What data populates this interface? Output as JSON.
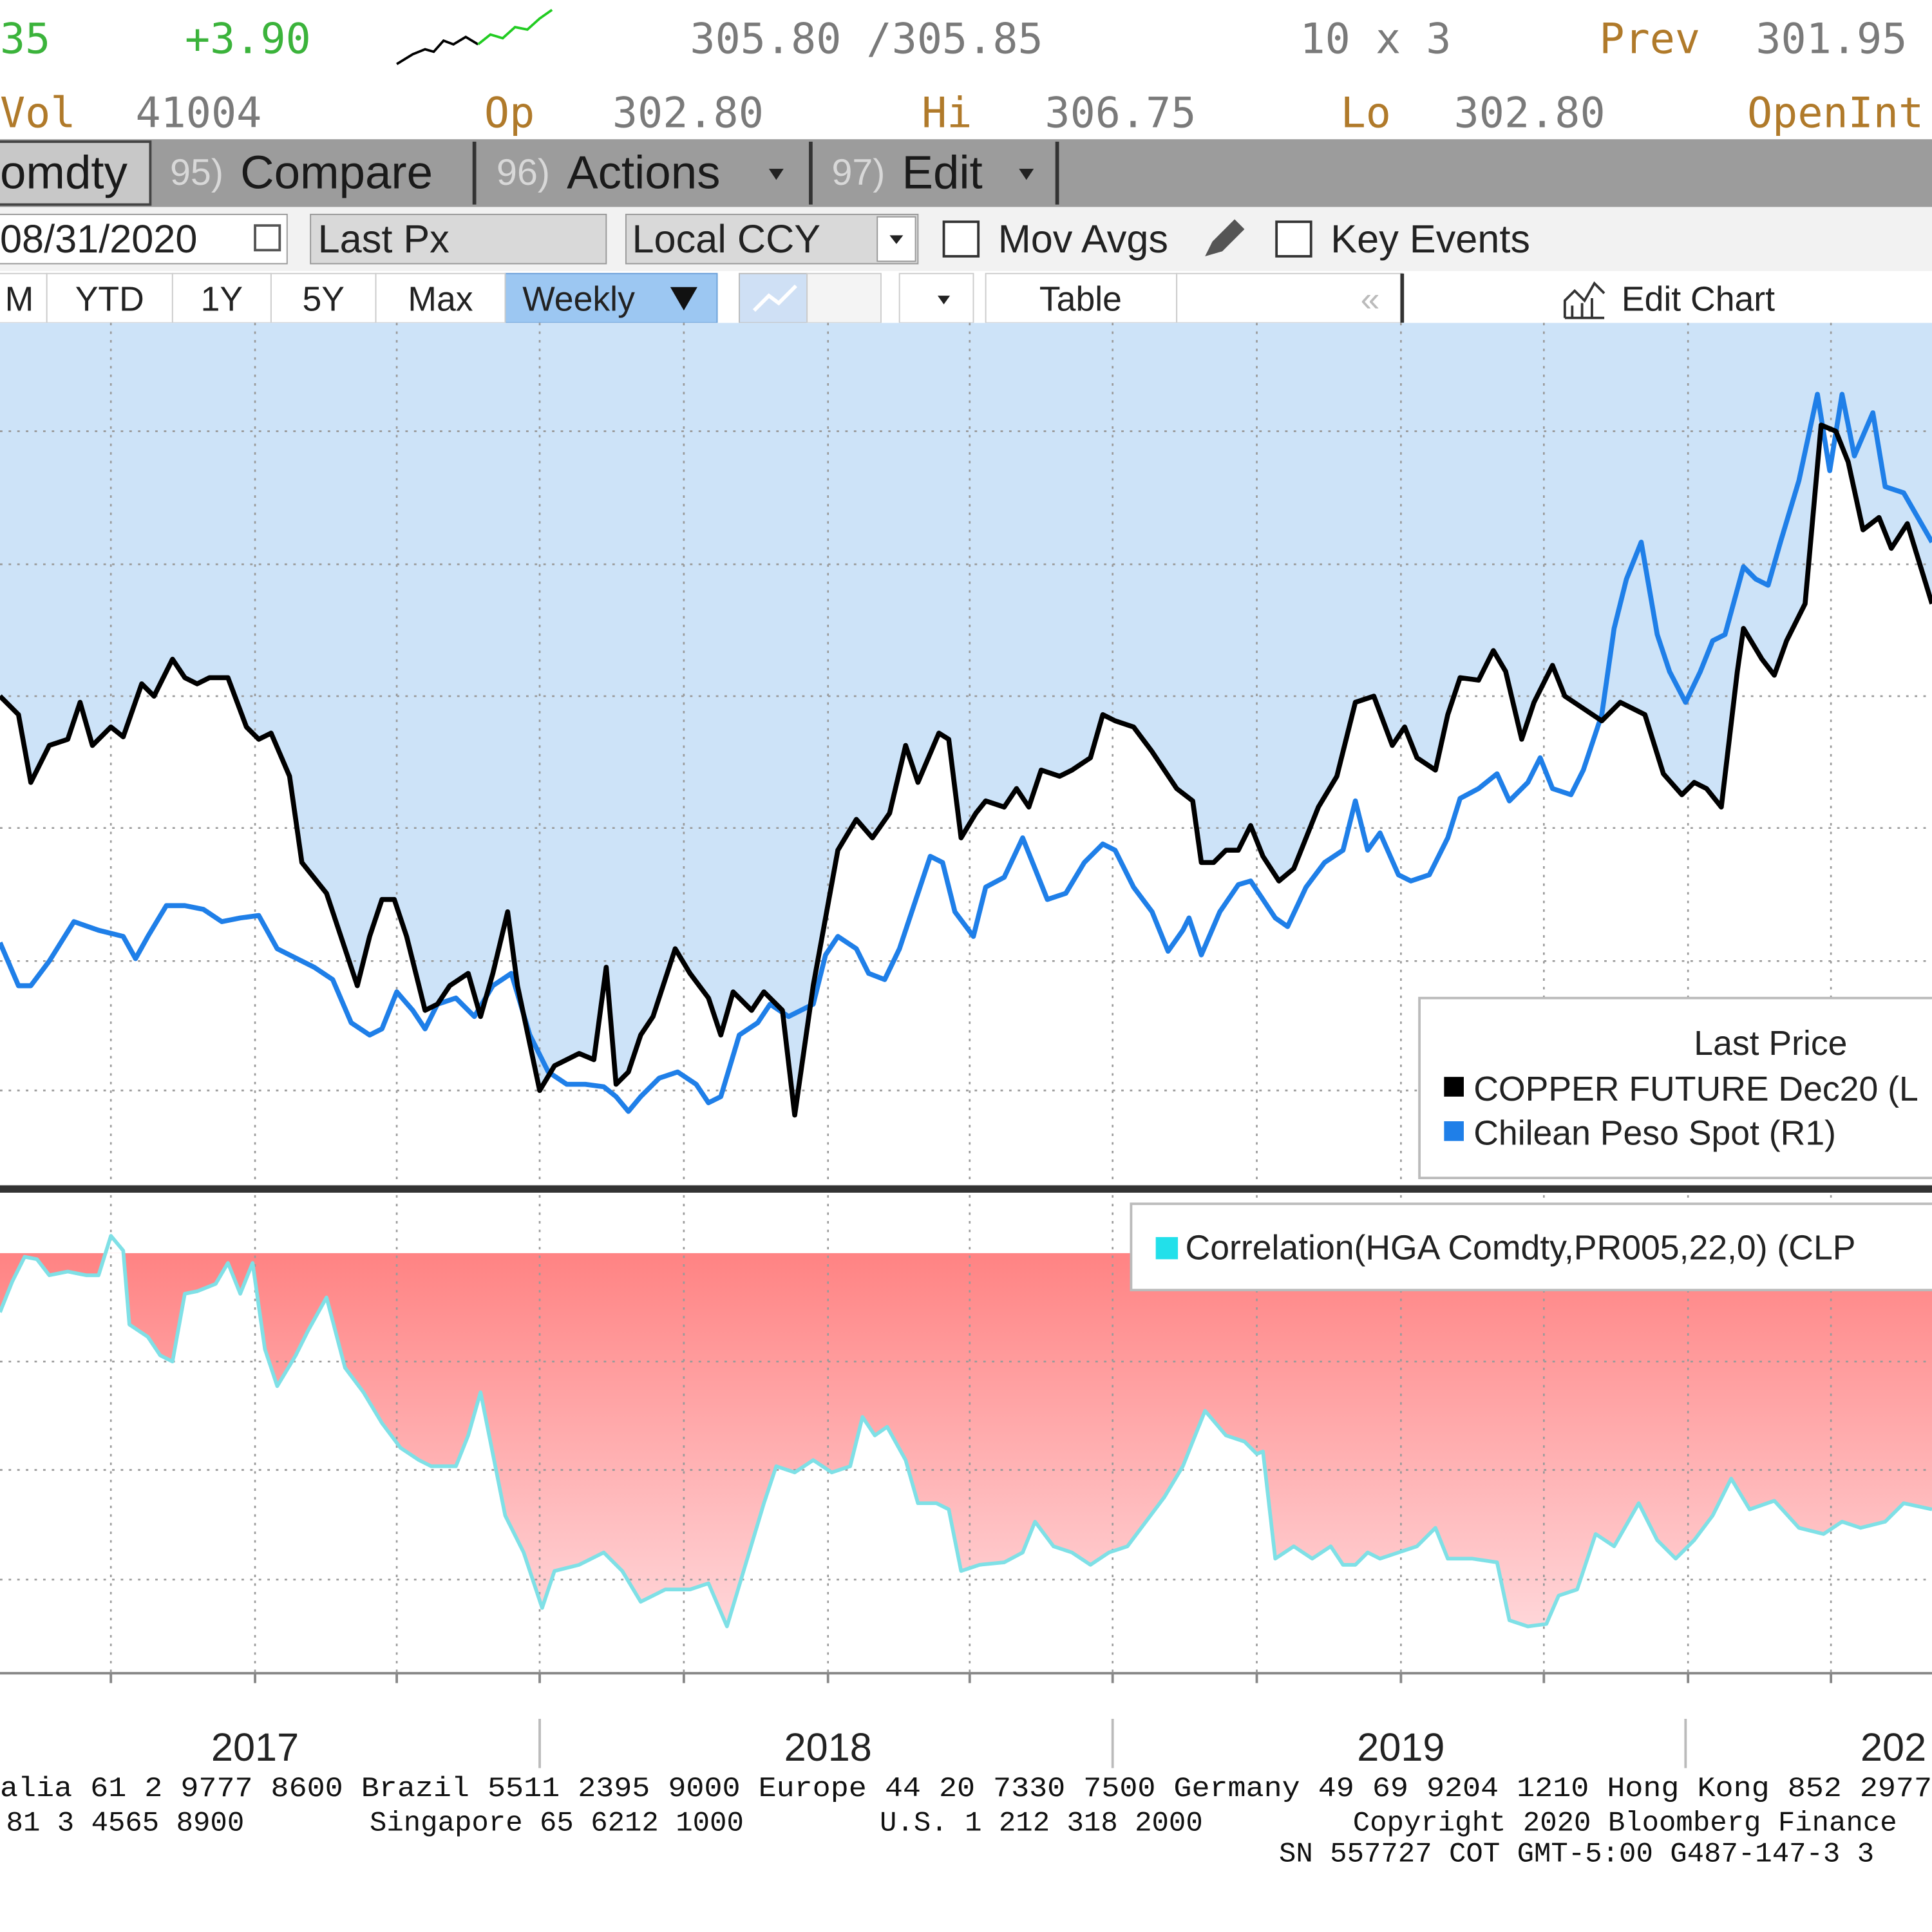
{
  "quote": {
    "last": "35",
    "change": "+3.90",
    "bid_ask": "305.80 /305.85",
    "size": "10 x 3",
    "prev_label": "Prev",
    "prev": "301.95"
  },
  "stats": [
    {
      "label": "Vol",
      "value": "41004"
    },
    {
      "label": "Op",
      "value": "302.80"
    },
    {
      "label": "Hi",
      "value": "306.75"
    },
    {
      "label": "Lo",
      "value": "302.80"
    },
    {
      "label": "OpenInt"
    }
  ],
  "tabs": [
    {
      "label": "omdty"
    },
    {
      "number": "95)",
      "label": "Compare"
    },
    {
      "number": "96)",
      "label": "Actions"
    },
    {
      "number": "97)",
      "label": "Edit"
    }
  ],
  "controls": {
    "date": "08/31/2020",
    "field": "Last Px",
    "currency": "Local CCY",
    "mov_avgs": "Mov Avgs",
    "key_events": "Key Events"
  },
  "range_buttons": [
    "M",
    "YTD",
    "1Y",
    "5Y",
    "Max"
  ],
  "frequency": "Weekly",
  "table": "Table",
  "collapse": "«",
  "edit_chart": "Edit Chart",
  "chart": {
    "legend_title": "Last Price",
    "series": [
      "COPPER FUTURE Dec20  (L",
      "Chilean Peso Spot  (R1)"
    ],
    "lower_legend": "Correlation(HGA Comdty,PR005,22,0) (CLP",
    "x_labels": [
      "2017",
      "2018",
      "2019",
      "202"
    ]
  },
  "footer": [
    "alia 61 2 9777 8600 Brazil 5511 2395 9000 Europe 44 20 7330 7500 Germany 49 69 9204 1210 Hong Kong 852 2977",
    "81 3 4565 8900",
    "Singapore 65 6212 1000",
    "U.S. 1 212 318 2000",
    "Copyright 2020 Bloomberg Finance",
    "SN 557727 COT  GMT-5:00 G487-147-3 3"
  ]
}
